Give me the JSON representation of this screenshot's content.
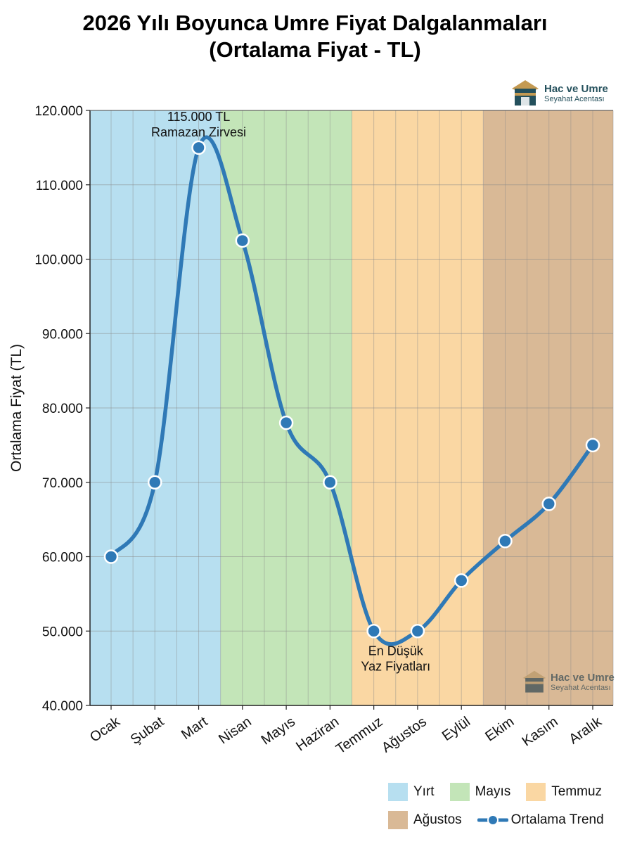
{
  "title_line1": "2026 Yılı Boyunca Umre Fiyat Dalgalanmaları",
  "title_line2": "(Ortalama Fiyat - TL)",
  "logo": {
    "name": "Hac ve Umre",
    "subtitle": "Seyahat Acentası"
  },
  "colors": {
    "line": "#2f79b6",
    "marker": "#2f79b6",
    "band_yirt": "#b7dff0",
    "band_mayis": "#c3e5b8",
    "band_temmuz": "#fad7a3",
    "band_agustos": "#d9b996",
    "logo_brand": "#24505c"
  },
  "chart_data": {
    "type": "line",
    "title": "2026 Yılı Boyunca Umre Fiyat Dalgalanmaları (Ortalama Fiyat - TL)",
    "xlabel": "",
    "ylabel": "Ortalama Fiyat (TL)",
    "ylim": [
      40000,
      120000
    ],
    "yticks": [
      40000,
      50000,
      60000,
      70000,
      80000,
      90000,
      100000,
      110000,
      120000
    ],
    "ytick_labels": [
      "40.000",
      "50.000",
      "60.000",
      "70.000",
      "80.000",
      "90.000",
      "100.000",
      "110.000",
      "120.000"
    ],
    "categories": [
      "Ocak",
      "Şubat",
      "Mart",
      "Nisan",
      "Mayıs",
      "Haziran",
      "Temmuz",
      "Ağustos",
      "Eylül",
      "Ekim",
      "Kasım",
      "Aralık"
    ],
    "series": [
      {
        "name": "Ortalama Trend",
        "values": [
          60000,
          70000,
          115000,
          102500,
          78000,
          70000,
          50000,
          50000,
          56800,
          62100,
          67100,
          75000
        ]
      }
    ],
    "bands": [
      {
        "label": "Yırt",
        "from": 0,
        "to": 2.5,
        "color": "#b7dff0"
      },
      {
        "label": "Mayıs",
        "from": 2.5,
        "to": 5.5,
        "color": "#c3e5b8"
      },
      {
        "label": "Temmuz",
        "from": 5.5,
        "to": 8.5,
        "color": "#fad7a3"
      },
      {
        "label": "Ağustos",
        "from": 8.5,
        "to": 11,
        "color": "#d9b996"
      }
    ],
    "annotations": [
      {
        "line1": "115.000 TL",
        "line2": "Ramazan Zirvesi",
        "index": 2
      },
      {
        "line1": "En Düşük",
        "line2": "Yaz Fiyatları",
        "index": 7
      }
    ],
    "grid": true,
    "legend_position": "bottom-right",
    "legend": [
      "Yırt",
      "Mayıs",
      "Temmuz",
      "Ağustos",
      "Ortalama Trend"
    ]
  }
}
